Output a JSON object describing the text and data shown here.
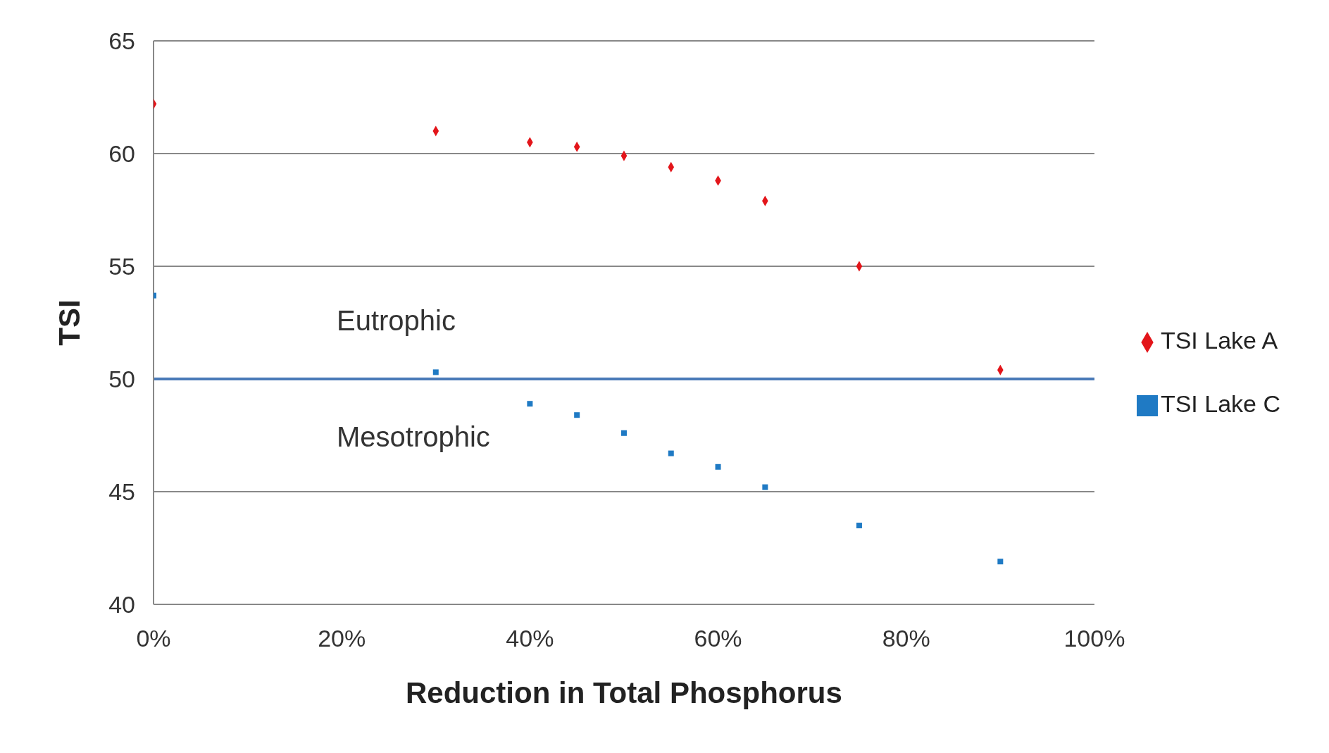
{
  "chart_data": {
    "type": "scatter",
    "xlabel": "Reduction in Total Phosphorus",
    "ylabel": "TSI",
    "xlim": [
      0,
      100
    ],
    "xticks": [
      {
        "value": 0,
        "label": "0%"
      },
      {
        "value": 20,
        "label": "20%"
      },
      {
        "value": 40,
        "label": "40%"
      },
      {
        "value": 60,
        "label": "60%"
      },
      {
        "value": 80,
        "label": "80%"
      },
      {
        "value": 100,
        "label": "100%"
      }
    ],
    "ylim": [
      40,
      65
    ],
    "yticks": [
      40,
      45,
      50,
      55,
      60,
      65
    ],
    "grid": "y",
    "legend": "right",
    "series": [
      {
        "name": "TSI Lake A",
        "color": "#e3151a",
        "marker": "diamond",
        "x": [
          0,
          30,
          40,
          45,
          50,
          55,
          60,
          65,
          75,
          90
        ],
        "values": [
          62.2,
          61.0,
          60.5,
          60.3,
          59.9,
          59.4,
          58.8,
          57.9,
          55.0,
          50.4
        ]
      },
      {
        "name": "TSI Lake C",
        "color": "#1f7ac4",
        "marker": "square",
        "x": [
          0,
          30,
          40,
          45,
          50,
          55,
          60,
          65,
          75,
          90
        ],
        "values": [
          53.7,
          50.3,
          48.9,
          48.4,
          47.6,
          46.7,
          46.1,
          45.2,
          43.5,
          41.9
        ]
      }
    ],
    "ref_lines": [
      {
        "axis": "y",
        "value": 50,
        "color": "#4a7ab8"
      }
    ],
    "annotations": [
      "Eutrophic",
      "Mesotrophic"
    ]
  }
}
